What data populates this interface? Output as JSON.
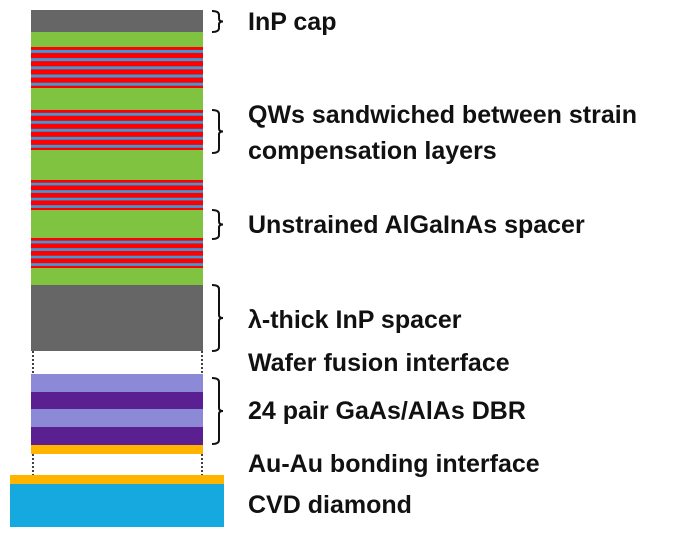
{
  "colors": {
    "inp": "#666666",
    "algainas": "#80c341",
    "qw_red": "#ff0000",
    "qw_blue": "#3a9bd8",
    "dbr_light": "#8c89d6",
    "dbr_dark": "#5a1f91",
    "gold": "#ffb400",
    "diamond": "#15a9e0",
    "bracket": "#111111"
  },
  "layers": [
    {
      "name": "inp-cap-layer",
      "material": "InP"
    },
    {
      "name": "algainas-layer",
      "material": "AlGaInAs"
    },
    {
      "name": "qw-stack-1",
      "material": "QW"
    },
    {
      "name": "algainas-layer",
      "material": "AlGaInAs"
    },
    {
      "name": "qw-stack-2",
      "material": "QW"
    },
    {
      "name": "algainas-layer",
      "material": "AlGaInAs"
    },
    {
      "name": "qw-stack-3",
      "material": "QW"
    },
    {
      "name": "algainas-layer",
      "material": "AlGaInAs"
    },
    {
      "name": "qw-stack-4",
      "material": "QW"
    },
    {
      "name": "algainas-layer",
      "material": "AlGaInAs"
    },
    {
      "name": "inp-spacer-layer",
      "material": "InP"
    },
    {
      "name": "dbr-layer",
      "material": "GaAs/AlAs"
    },
    {
      "name": "au-layer",
      "material": "Au"
    },
    {
      "name": "au-layer",
      "material": "Au"
    },
    {
      "name": "diamond-substrate",
      "material": "CVD diamond"
    }
  ],
  "labels": {
    "inp_cap": "InP cap",
    "qws_line1": "QWs sandwiched between strain",
    "qws_line2": "compensation layers",
    "spacer": "Unstrained AlGaInAs spacer",
    "inp_spacer": "λ-thick InP spacer",
    "wafer_fusion": "Wafer fusion interface",
    "dbr": "24 pair GaAs/AlAs DBR",
    "au_bond": "Au-Au bonding interface",
    "diamond": "CVD diamond"
  }
}
